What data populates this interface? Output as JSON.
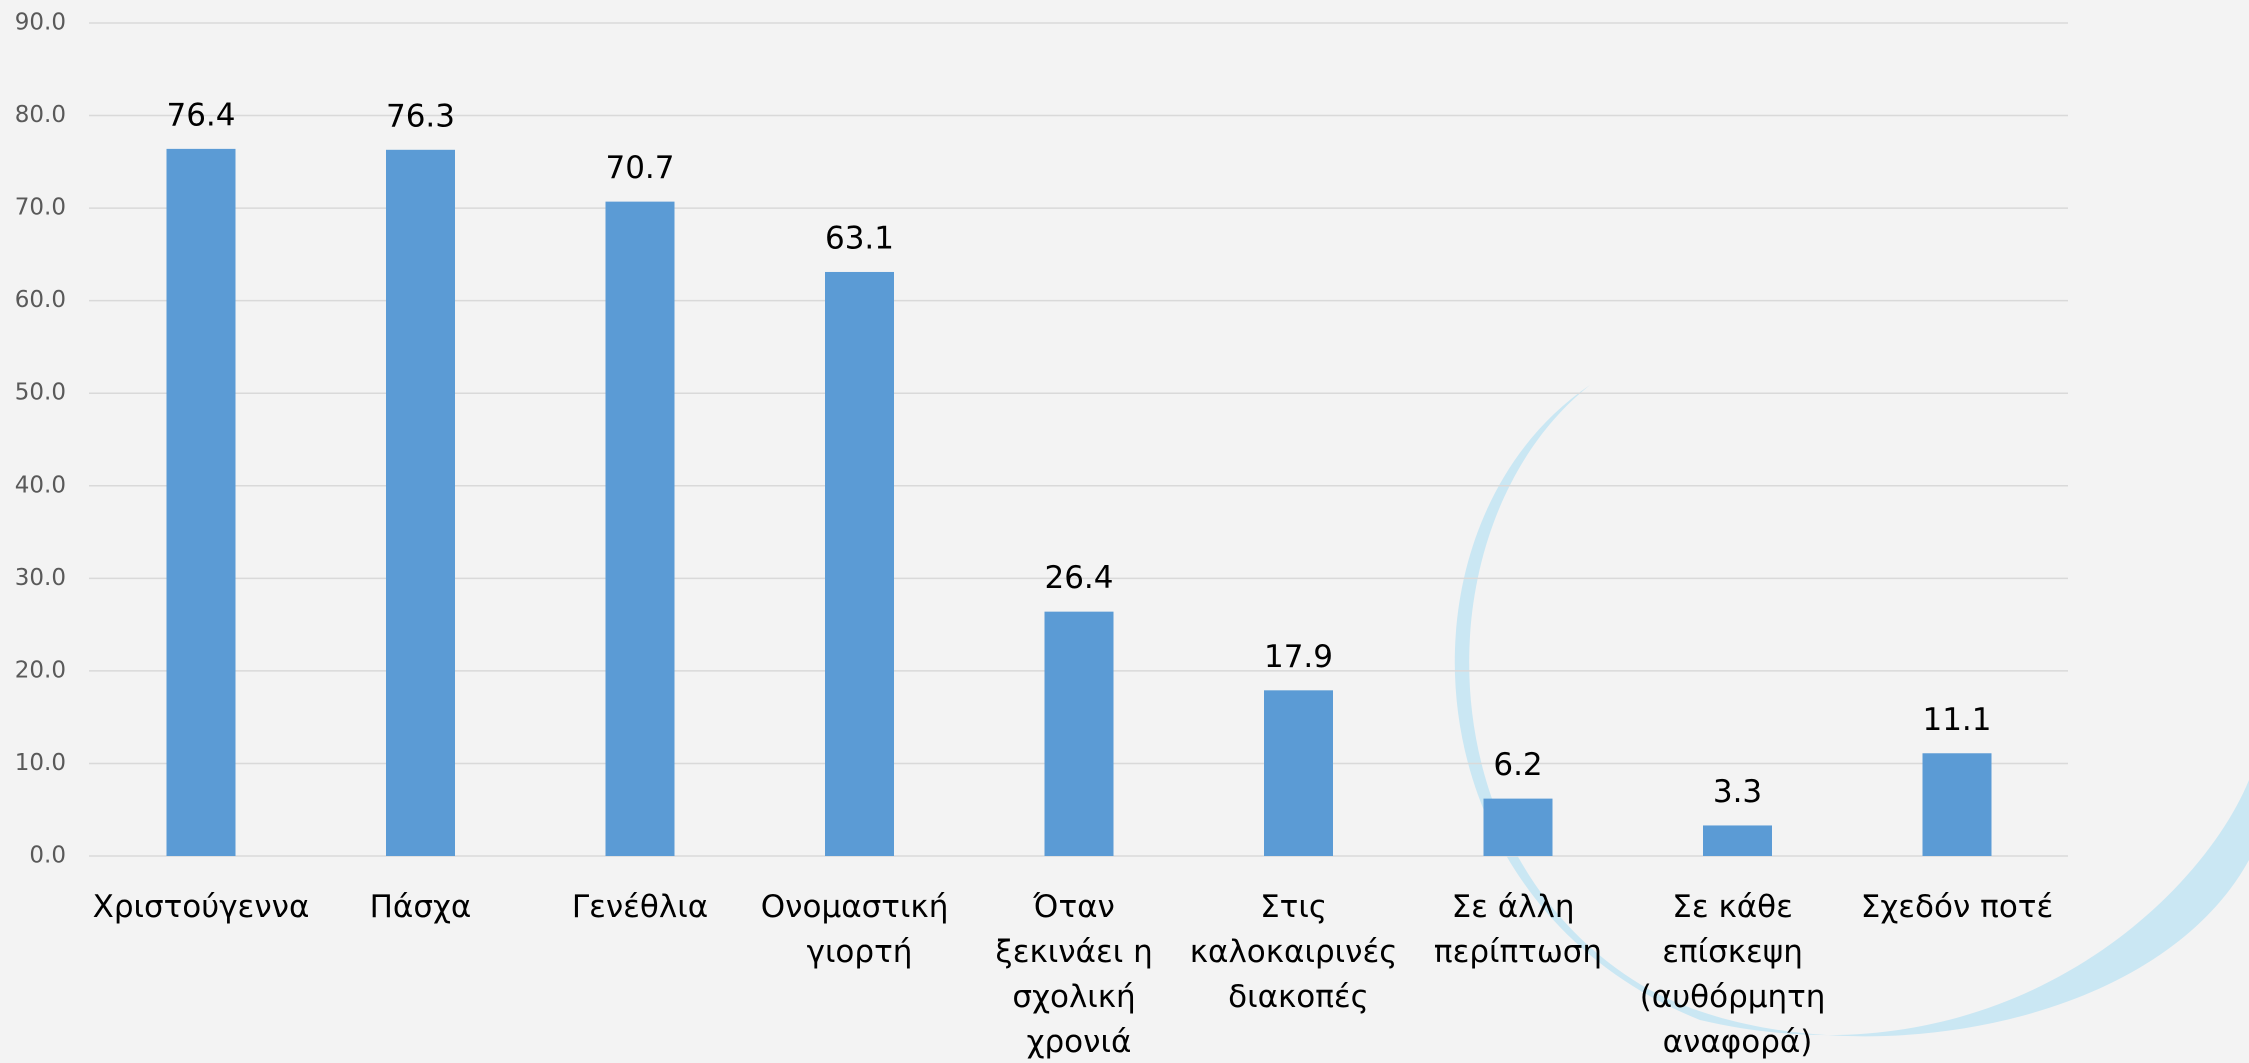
{
  "chart_data": {
    "type": "bar",
    "categories": [
      "Χριστούγεννα",
      "Πάσχα",
      "Γενέθλια",
      "Ονομαστική γιορτή",
      "Όταν ξεκινάει η σχολική χρονιά",
      "Στις καλοκαιρινές διακοπές",
      "Σε άλλη περίπτωση",
      "Σε κάθε επίσκεψη (αυθόρμητη αναφορά)",
      "Σχεδόν ποτέ"
    ],
    "values": [
      76.4,
      76.3,
      70.7,
      63.1,
      26.4,
      17.9,
      6.2,
      3.3,
      11.1
    ],
    "color": "#5b9bd5",
    "ylim": [
      0,
      90
    ],
    "yticks": [
      {
        "value": 0,
        "label": "0.0"
      },
      {
        "value": 10,
        "label": "10.0"
      },
      {
        "value": 20,
        "label": "20.0"
      },
      {
        "value": 30,
        "label": "30.0"
      },
      {
        "value": 40,
        "label": "40.0"
      },
      {
        "value": 50,
        "label": "50.0"
      },
      {
        "value": 60,
        "label": "60.0"
      },
      {
        "value": 70,
        "label": "70.0"
      },
      {
        "value": 80,
        "label": "80.0"
      },
      {
        "value": 90,
        "label": "90.0"
      }
    ],
    "grid": true
  }
}
